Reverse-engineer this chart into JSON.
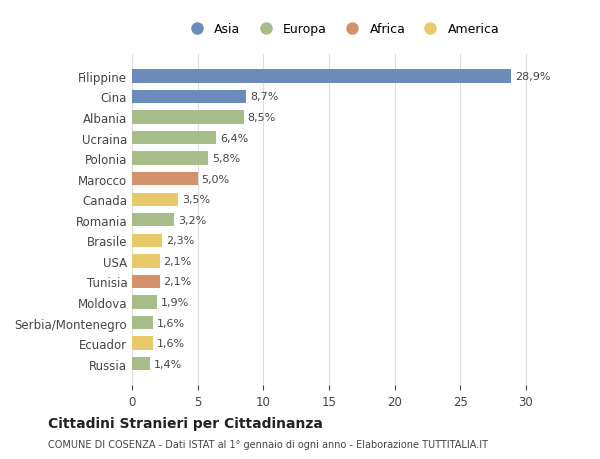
{
  "categories": [
    "Russia",
    "Ecuador",
    "Serbia/Montenegro",
    "Moldova",
    "Tunisia",
    "USA",
    "Brasile",
    "Romania",
    "Canada",
    "Marocco",
    "Polonia",
    "Ucraina",
    "Albania",
    "Cina",
    "Filippine"
  ],
  "values": [
    1.4,
    1.6,
    1.6,
    1.9,
    2.1,
    2.1,
    2.3,
    3.2,
    3.5,
    5.0,
    5.8,
    6.4,
    8.5,
    8.7,
    28.9
  ],
  "labels": [
    "1,4%",
    "1,6%",
    "1,6%",
    "1,9%",
    "2,1%",
    "2,1%",
    "2,3%",
    "3,2%",
    "3,5%",
    "5,0%",
    "5,8%",
    "6,4%",
    "8,5%",
    "8,7%",
    "28,9%"
  ],
  "continent": [
    "Europa",
    "America",
    "Europa",
    "Europa",
    "Africa",
    "America",
    "America",
    "Europa",
    "America",
    "Africa",
    "Europa",
    "Europa",
    "Europa",
    "Asia",
    "Asia"
  ],
  "colors": {
    "Asia": "#6b8cba",
    "Europa": "#a8bc8a",
    "Africa": "#d4906a",
    "America": "#e8c96a"
  },
  "legend_order": [
    "Asia",
    "Europa",
    "Africa",
    "America"
  ],
  "title": "Cittadini Stranieri per Cittadinanza",
  "subtitle": "COMUNE DI COSENZA - Dati ISTAT al 1° gennaio di ogni anno - Elaborazione TUTTITALIA.IT",
  "xlim": [
    0,
    32
  ],
  "xticks": [
    0,
    5,
    10,
    15,
    20,
    25,
    30
  ],
  "bg_color": "#ffffff",
  "grid_color": "#dddddd",
  "bar_height": 0.65
}
